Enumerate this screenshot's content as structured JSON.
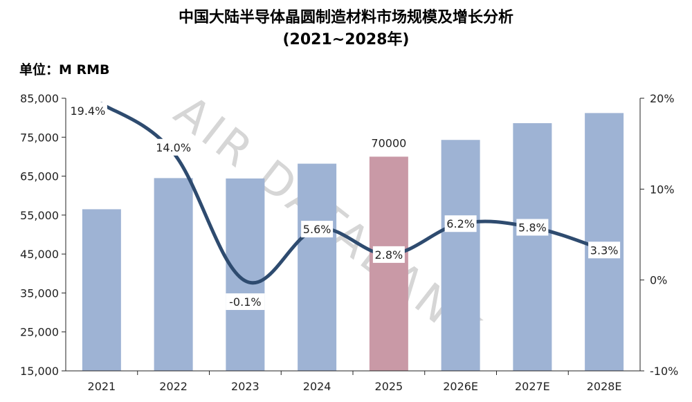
{
  "title_line1": "中国大陆半导体晶圆制造材料市场规模及增长分析",
  "title_line2": "(2021~2028年)",
  "unit_label": "单位：M RMB",
  "watermark": "AIR DATABANK",
  "colors": {
    "bar": "#9eb3d4",
    "bar_highlight": "#c999a6",
    "line": "#2e4b6f"
  },
  "chart_data": {
    "type": "bar",
    "categories": [
      "2021",
      "2022",
      "2023",
      "2024",
      "2025",
      "2026E",
      "2027E",
      "2028E"
    ],
    "series": [
      {
        "type": "bar",
        "values": [
          56500,
          64500,
          64400,
          68200,
          70000,
          74300,
          78600,
          81200
        ]
      },
      {
        "type": "line",
        "axis": "right",
        "values": [
          19.4,
          14.0,
          -0.1,
          5.6,
          2.8,
          6.2,
          5.8,
          3.3
        ]
      }
    ],
    "bar_data_labels": [
      null,
      null,
      null,
      null,
      "70000",
      null,
      null,
      null
    ],
    "line_data_labels": [
      "19.4%",
      "14.0%",
      "-0.1%",
      "5.6%",
      "2.8%",
      "6.2%",
      "5.8%",
      "3.3%"
    ],
    "highlight_index": 4,
    "left_axis": {
      "ylim": [
        15000,
        85000
      ],
      "ticks": [
        "15,000",
        "25,000",
        "35,000",
        "45,000",
        "55,000",
        "65,000",
        "75,000",
        "85,000"
      ]
    },
    "right_axis": {
      "ylim": [
        -10,
        20
      ],
      "ticks": [
        "-10%",
        "0%",
        "10%",
        "20%"
      ]
    },
    "grid": false,
    "legend": "none"
  }
}
